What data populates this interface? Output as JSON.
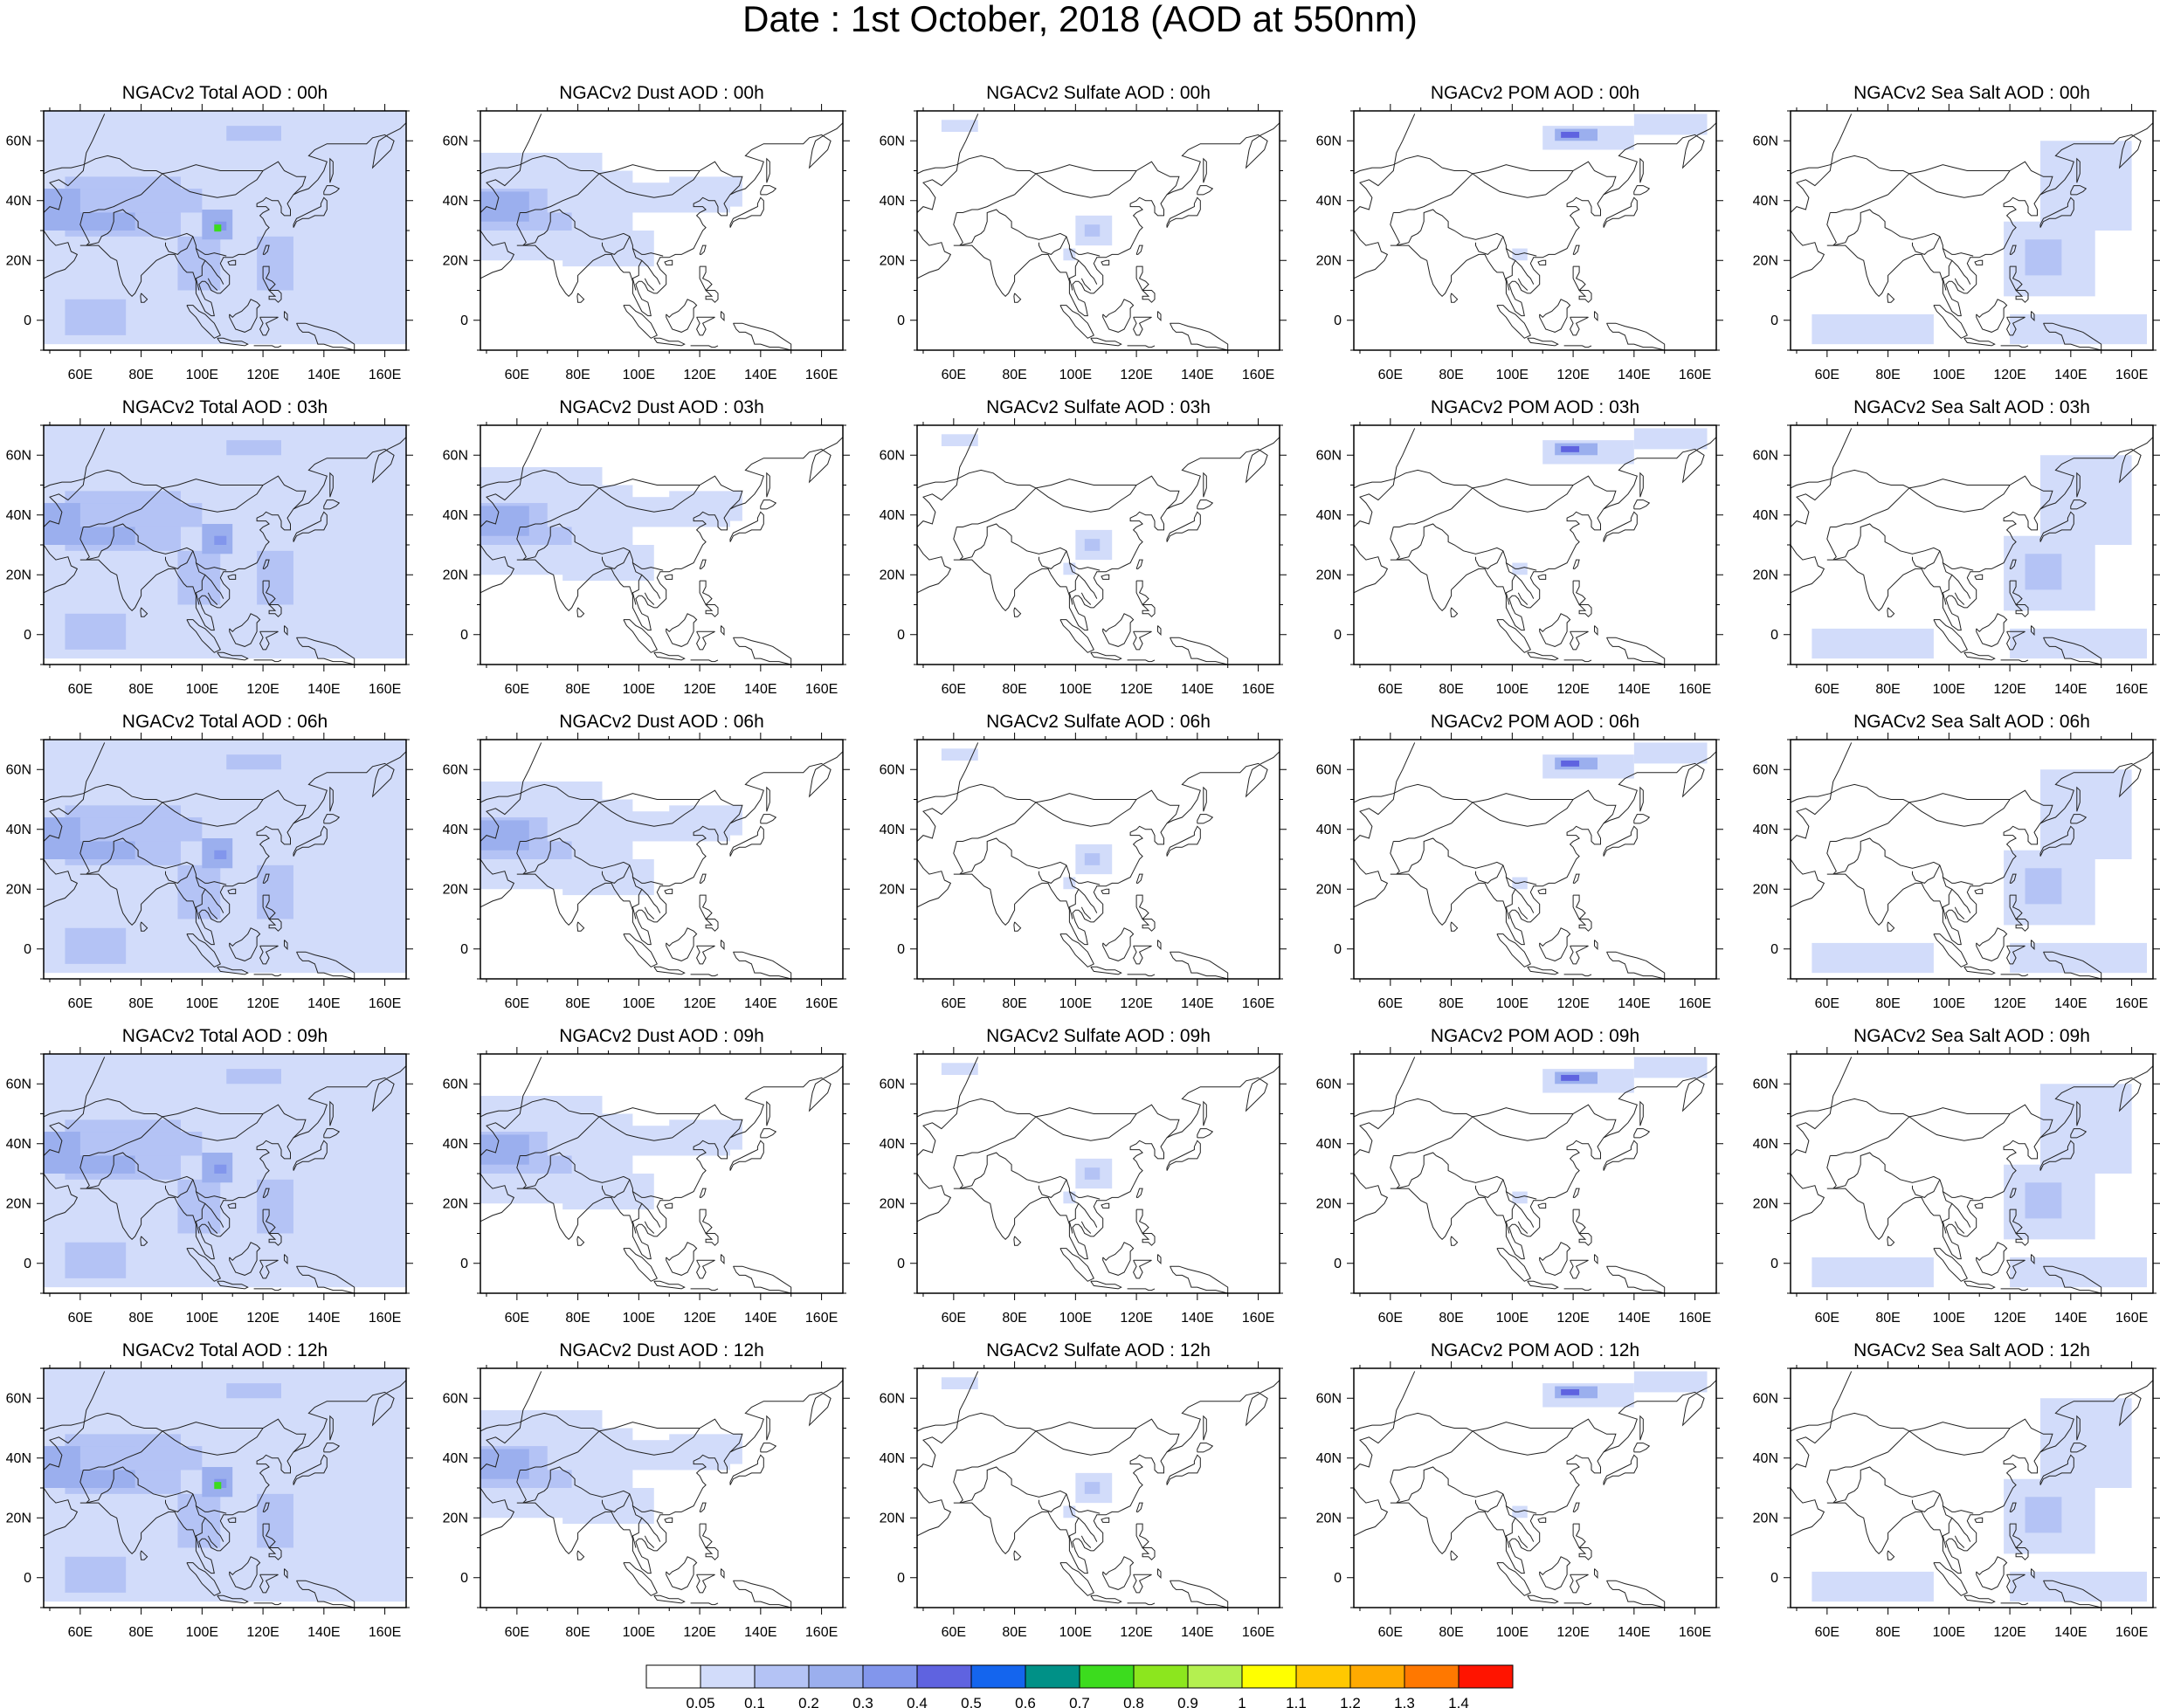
{
  "title": "Date : 1st October, 2018 (AOD at 550nm)",
  "lon_ticks": [
    "60E",
    "80E",
    "100E",
    "120E",
    "140E",
    "160E"
  ],
  "lat_ticks": [
    "60N",
    "40N",
    "20N",
    "0"
  ],
  "map_extent": {
    "lon": [
      48,
      167
    ],
    "lat": [
      -10,
      70
    ]
  },
  "panels": [
    [
      "NGACv2 Total AOD : 00h",
      "NGACv2 Dust AOD : 00h",
      "NGACv2 Sulfate AOD : 00h",
      "NGACv2 POM AOD : 00h",
      "NGACv2 Sea Salt AOD : 00h"
    ],
    [
      "NGACv2 Total AOD : 03h",
      "NGACv2 Dust AOD : 03h",
      "NGACv2 Sulfate AOD : 03h",
      "NGACv2 POM AOD : 03h",
      "NGACv2 Sea Salt AOD : 03h"
    ],
    [
      "NGACv2 Total AOD : 06h",
      "NGACv2 Dust AOD : 06h",
      "NGACv2 Sulfate AOD : 06h",
      "NGACv2 POM AOD : 06h",
      "NGACv2 Sea Salt AOD : 06h"
    ],
    [
      "NGACv2 Total AOD : 09h",
      "NGACv2 Dust AOD : 09h",
      "NGACv2 Sulfate AOD : 09h",
      "NGACv2 POM AOD : 09h",
      "NGACv2 Sea Salt  AOD : 09h"
    ],
    [
      "NGACv2 Total AOD  : 12h",
      "NGACv2 Dust AOD : 12h",
      "NGACv2 Sulfate AOD : 12h",
      "NGACv2 POM  AOD : 12h",
      "NGACv2 Sea Salt  AOD : 12h"
    ]
  ],
  "colorbar": {
    "labels": [
      "0.05",
      "0.1",
      "0.2",
      "0.3",
      "0.4",
      "0.5",
      "0.6",
      "0.7",
      "0.8",
      "0.9",
      "1",
      "1.1",
      "1.2",
      "1.3",
      "1.4"
    ],
    "colors": [
      "#ffffff",
      "#d2dcfa",
      "#b4c3f5",
      "#9bafee",
      "#8296ec",
      "#5f63e0",
      "#1465ee",
      "#009187",
      "#3cdc1e",
      "#8ce61e",
      "#b4f050",
      "#ffff00",
      "#ffc800",
      "#ffaa00",
      "#ff7800",
      "#ff1400"
    ]
  },
  "colors": {
    "light": "#d2dcfa",
    "medium": "#b4c3f5",
    "strong": "#9bafee",
    "darker": "#8296ec",
    "core": "#5f63e0",
    "green": "#3cdc1e"
  }
}
